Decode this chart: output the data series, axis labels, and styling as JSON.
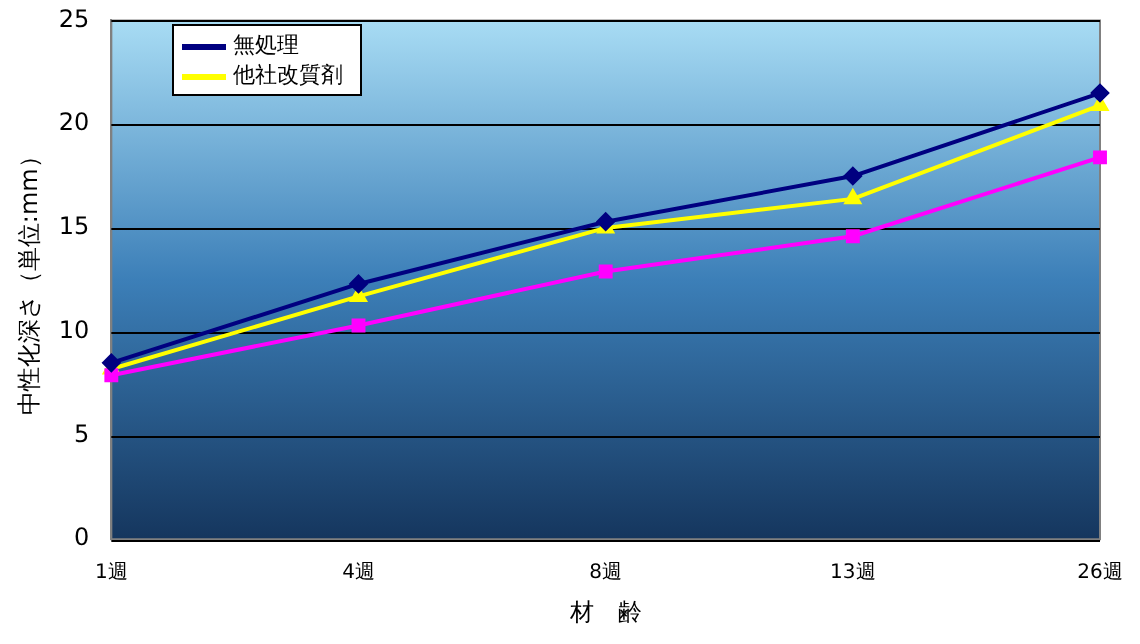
{
  "chart_data": {
    "type": "line",
    "xlabel": "材　齢",
    "ylabel": "中性化深さ（単位:mm）",
    "categories": [
      "1週",
      "4週",
      "8週",
      "13週",
      "26週"
    ],
    "series": [
      {
        "name": "無処理",
        "color": "#000080",
        "marker": "diamond",
        "values": [
          8.5,
          12.3,
          15.3,
          17.5,
          21.5
        ]
      },
      {
        "color": "#ff00ff",
        "marker": "square",
        "values": [
          7.9,
          10.3,
          12.9,
          14.6,
          18.4
        ]
      },
      {
        "name": "他社改質剤",
        "color": "#ffff00",
        "marker": "triangle",
        "values": [
          8.2,
          11.7,
          15.0,
          16.4,
          20.9
        ]
      }
    ],
    "ylim": [
      0,
      25
    ],
    "yticks": [
      0,
      5,
      10,
      15,
      20,
      25
    ],
    "grid": "y",
    "legend": "top left"
  }
}
